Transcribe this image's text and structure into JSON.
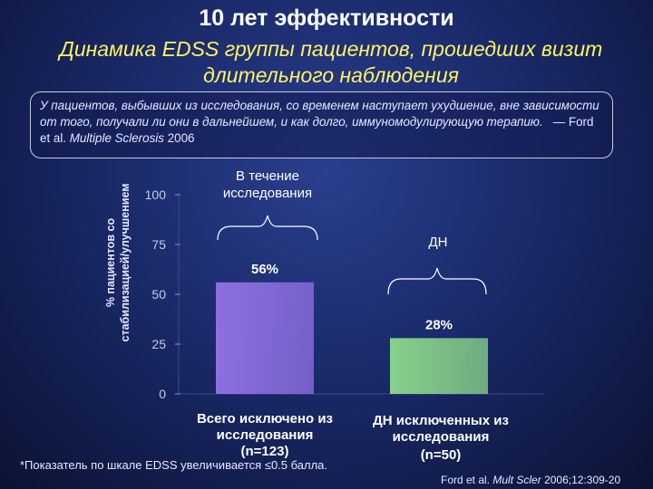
{
  "title": "10 лет эффективности",
  "subtitle": "Динамика EDSS группы пациентов, прошедших визит длительного наблюдения",
  "quote": {
    "text": "У пациентов, выбывших из исследования, со временем наступает ухудшение, вне зависимости от того, получали ли они в дальнейшем, и как долго, иммуномодулирующую терапию.",
    "source_prefix": "— Ford et al.",
    "journal": "Multiple Sclerosis",
    "year": "2006"
  },
  "footnote": "*Показатель по шкале EDSS увеличивается ≤0.5 балла.",
  "reference": {
    "authors": "Ford et al.",
    "journal": "Mult Scler",
    "details": "2006;12:309-20"
  },
  "chart_data": {
    "type": "bar",
    "ylabel": [
      "% пациентов со",
      "стабилизацией/улучшением"
    ],
    "ylim": [
      0,
      100
    ],
    "yticks": [
      0,
      25,
      50,
      75,
      100
    ],
    "categories": [
      [
        "Всего исключено из",
        "исследования",
        "(n=123)"
      ],
      [
        "ДН исключенных из",
        "исследования",
        "(n=50)"
      ]
    ],
    "values": [
      56,
      28
    ],
    "value_labels": [
      "56%",
      "28%"
    ],
    "bar_colors": [
      "#8e6fe0",
      "#88d08a"
    ],
    "annotations": [
      {
        "text": [
          "В течение",
          "исследования"
        ],
        "bar": 0
      },
      {
        "text": [
          "ДН"
        ],
        "bar": 1
      }
    ]
  }
}
